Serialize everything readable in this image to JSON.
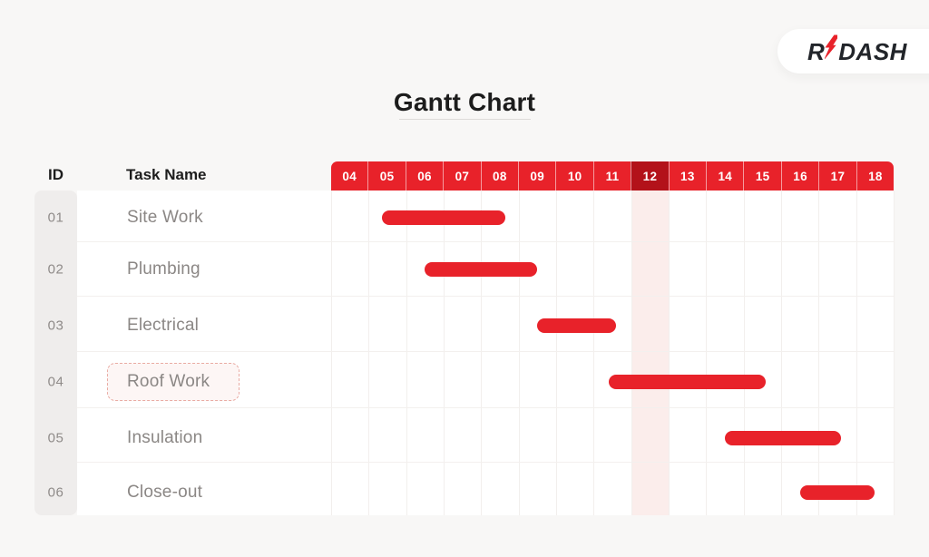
{
  "page": {
    "title": "Gantt Chart",
    "logo": {
      "prefix": "R",
      "suffix": "DASH",
      "bolt_icon": "lightning-bolt-icon"
    }
  },
  "table": {
    "id_header": "ID",
    "task_header": "Task Name"
  },
  "colors": {
    "accent_red": "#e8222a",
    "highlighted_day_red": "#b3121a",
    "highlight_band_pink": "#fbedeb",
    "page_background": "#f8f7f6",
    "id_column_background": "#efedec",
    "task_text_gray": "#8b8785",
    "header_text": "#1d1d1d"
  },
  "chart_data": {
    "type": "gantt",
    "title": "Gantt Chart",
    "columns": [
      "04",
      "05",
      "06",
      "07",
      "08",
      "09",
      "10",
      "11",
      "12",
      "13",
      "14",
      "15",
      "16",
      "17",
      "18"
    ],
    "highlighted_column": "12",
    "bar_color": "#e8222a",
    "tasks": [
      {
        "id": "01",
        "name": "Site Work",
        "start": 1.35,
        "end": 4.65,
        "selected": false
      },
      {
        "id": "02",
        "name": "Plumbing",
        "start": 2.5,
        "end": 5.5,
        "selected": false
      },
      {
        "id": "03",
        "name": "Electrical",
        "start": 5.5,
        "end": 7.6,
        "selected": false
      },
      {
        "id": "04",
        "name": "Roof Work",
        "start": 7.4,
        "end": 11.6,
        "selected": true
      },
      {
        "id": "05",
        "name": "Insulation",
        "start": 10.5,
        "end": 13.6,
        "selected": false
      },
      {
        "id": "06",
        "name": "Close-out",
        "start": 12.5,
        "end": 14.5,
        "selected": false
      }
    ]
  }
}
